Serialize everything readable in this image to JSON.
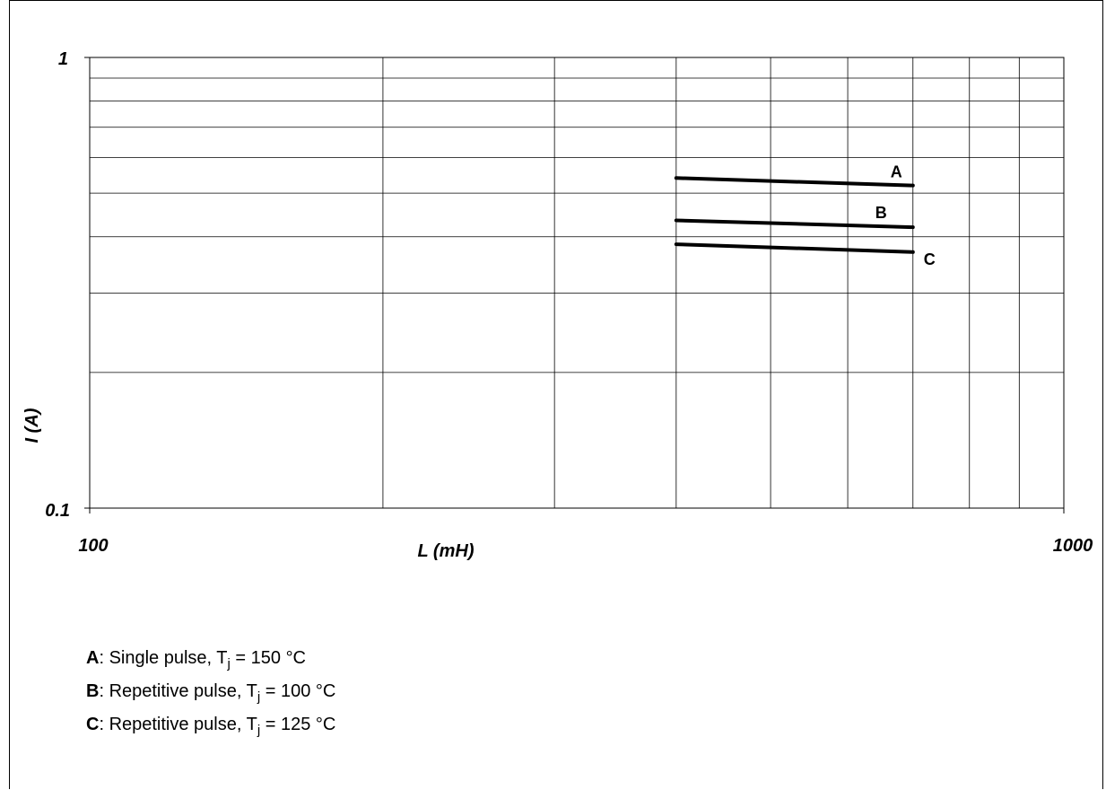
{
  "chart_data": {
    "type": "line",
    "xscale": "log",
    "yscale": "log",
    "xlim": [
      100,
      1000
    ],
    "ylim": [
      0.1,
      1
    ],
    "xlabel": "L (mH)",
    "ylabel": "I (A)",
    "x_tick_labels": [
      "100",
      "1000"
    ],
    "y_tick_labels": [
      "0.1",
      "1"
    ],
    "grid": true,
    "x_gridlines": [
      200,
      300,
      400,
      500,
      600,
      700,
      800,
      900
    ],
    "y_gridlines": [
      0.2,
      0.3,
      0.4,
      0.5,
      0.6,
      0.7,
      0.8,
      0.9
    ],
    "series": [
      {
        "name": "A",
        "x": [
          400,
          700
        ],
        "y": [
          0.54,
          0.52
        ]
      },
      {
        "name": "B",
        "x": [
          400,
          700
        ],
        "y": [
          0.435,
          0.42
        ]
      },
      {
        "name": "C",
        "x": [
          400,
          700
        ],
        "y": [
          0.385,
          0.37
        ]
      }
    ]
  },
  "legend": [
    {
      "key": "A",
      "text_before": ": Single pulse, T",
      "sub": "j",
      "text_after": " = 150 °C"
    },
    {
      "key": "B",
      "text_before": ": Repetitive pulse, T",
      "sub": "j",
      "text_after": " = 100 °C"
    },
    {
      "key": "C",
      "text_before": ": Repetitive pulse, T",
      "sub": "j",
      "text_after": " = 125 °C"
    }
  ]
}
